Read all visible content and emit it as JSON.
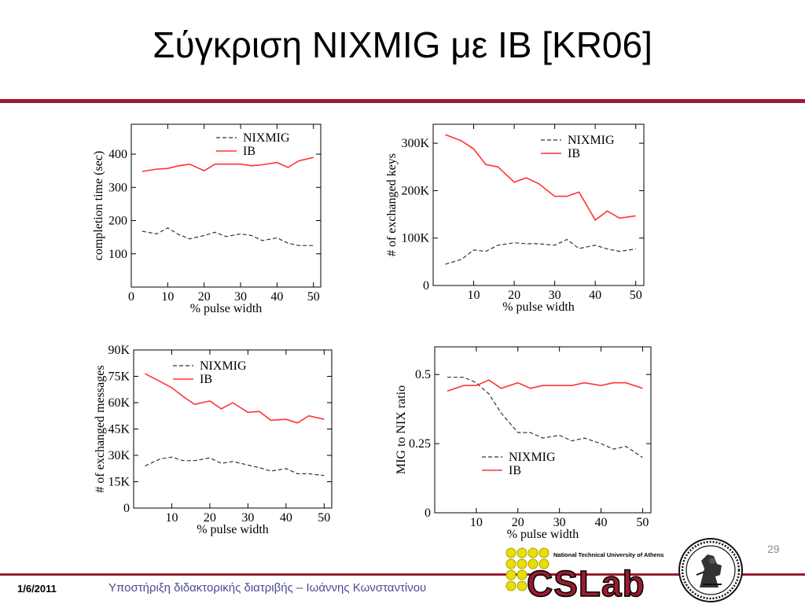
{
  "slide": {
    "title": "Σύγκριση NIXMIG με IB [KR06]",
    "page_number": "29",
    "footer_date": "1/6/2011",
    "footer_text": "Υποστήριξη διδακτορικής διατριβής – Ιωάννης Κωνσταντίνου",
    "logo_text": "CSLab",
    "logo_subtitle": "National Technical University of Athens",
    "accent_color": "#9b1b30",
    "ib_color": "#ff3333",
    "nixmig_color": "#333333"
  },
  "chart_data": [
    {
      "type": "line",
      "xlabel": "% pulse width",
      "ylabel": "completion time (sec)",
      "xlim": [
        0,
        52
      ],
      "ylim": [
        0,
        490
      ],
      "xticks": [
        0,
        10,
        20,
        30,
        40,
        50
      ],
      "xtick_labels": [
        "0",
        "10",
        "20",
        "30",
        "40",
        "50"
      ],
      "yticks": [
        100,
        200,
        300,
        400
      ],
      "ytick_labels": [
        "100",
        "200",
        "300",
        "400"
      ],
      "legend_position": "top-right",
      "series": [
        {
          "name": "NIXMIG",
          "x": [
            3,
            7,
            10,
            13,
            16,
            20,
            23,
            26,
            30,
            33,
            36,
            40,
            43,
            46,
            50
          ],
          "y": [
            168,
            160,
            178,
            158,
            145,
            155,
            165,
            152,
            160,
            155,
            140,
            148,
            132,
            125,
            125
          ]
        },
        {
          "name": "IB",
          "x": [
            3,
            7,
            10,
            13,
            16,
            20,
            23,
            26,
            30,
            33,
            36,
            40,
            43,
            46,
            50
          ],
          "y": [
            348,
            355,
            357,
            365,
            370,
            350,
            370,
            370,
            370,
            365,
            368,
            375,
            360,
            380,
            390
          ]
        }
      ]
    },
    {
      "type": "line",
      "xlabel": "% pulse width",
      "ylabel": "# of exchanged keys",
      "xlim": [
        0,
        52
      ],
      "ylim": [
        0,
        340000
      ],
      "xticks": [
        10,
        20,
        30,
        40,
        50
      ],
      "xtick_labels": [
        "10",
        "20",
        "30",
        "40",
        "50"
      ],
      "yticks": [
        0,
        100000,
        200000,
        300000
      ],
      "ytick_labels": [
        "0",
        "100K",
        "200K",
        "300K"
      ],
      "legend_position": "top-right",
      "series": [
        {
          "name": "NIXMIG",
          "x": [
            3,
            7,
            10,
            13,
            16,
            20,
            23,
            26,
            30,
            33,
            36,
            40,
            43,
            46,
            50
          ],
          "y": [
            45000,
            55000,
            75000,
            72000,
            85000,
            90000,
            88000,
            88000,
            85000,
            97000,
            78000,
            85000,
            77000,
            72000,
            77000
          ]
        },
        {
          "name": "IB",
          "x": [
            3,
            7,
            10,
            13,
            16,
            20,
            23,
            26,
            30,
            33,
            36,
            40,
            43,
            46,
            50
          ],
          "y": [
            318000,
            305000,
            288000,
            255000,
            250000,
            218000,
            227000,
            215000,
            188000,
            188000,
            197000,
            138000,
            157000,
            142000,
            147000
          ]
        }
      ]
    },
    {
      "type": "line",
      "xlabel": "% pulse width",
      "ylabel": "# of exchanged messages",
      "xlim": [
        0,
        52
      ],
      "ylim": [
        0,
        90000
      ],
      "xticks": [
        10,
        20,
        30,
        40,
        50
      ],
      "xtick_labels": [
        "10",
        "20",
        "30",
        "40",
        "50"
      ],
      "yticks": [
        0,
        15000,
        30000,
        45000,
        60000,
        75000,
        90000
      ],
      "ytick_labels": [
        "0",
        "15K",
        "30K",
        "45K",
        "60K",
        "75K",
        "90K"
      ],
      "legend_position": "top-right",
      "series": [
        {
          "name": "NIXMIG",
          "x": [
            3,
            7,
            10,
            13,
            16,
            20,
            23,
            26,
            30,
            33,
            36,
            40,
            43,
            46,
            50
          ],
          "y": [
            24000,
            28000,
            29000,
            27000,
            27000,
            28500,
            25500,
            26500,
            24500,
            23000,
            21000,
            22500,
            19500,
            19500,
            18500
          ]
        },
        {
          "name": "IB",
          "x": [
            3,
            7,
            10,
            13,
            16,
            20,
            23,
            26,
            30,
            33,
            36,
            40,
            43,
            46,
            50
          ],
          "y": [
            76500,
            72000,
            68500,
            63500,
            59000,
            61000,
            56500,
            60000,
            54500,
            55000,
            50000,
            50500,
            48500,
            52500,
            50500
          ]
        }
      ]
    },
    {
      "type": "line",
      "xlabel": "% pulse width",
      "ylabel": "MIG to NIX ratio",
      "xlim": [
        0,
        52
      ],
      "ylim": [
        0,
        0.6
      ],
      "xticks": [
        10,
        20,
        30,
        40,
        50
      ],
      "xtick_labels": [
        "10",
        "20",
        "30",
        "40",
        "50"
      ],
      "yticks": [
        0,
        0.25,
        0.5
      ],
      "ytick_labels": [
        "0",
        "0.25",
        "0.5"
      ],
      "legend_position": "bottom-center",
      "series": [
        {
          "name": "NIXMIG",
          "x": [
            3,
            7,
            10,
            13,
            16,
            20,
            23,
            26,
            30,
            33,
            36,
            40,
            43,
            46,
            50
          ],
          "y": [
            0.49,
            0.49,
            0.47,
            0.43,
            0.36,
            0.29,
            0.29,
            0.27,
            0.28,
            0.26,
            0.27,
            0.25,
            0.23,
            0.24,
            0.2
          ]
        },
        {
          "name": "IB",
          "x": [
            3,
            7,
            10,
            13,
            16,
            20,
            23,
            26,
            30,
            33,
            36,
            40,
            43,
            46,
            50
          ],
          "y": [
            0.44,
            0.46,
            0.46,
            0.48,
            0.45,
            0.47,
            0.45,
            0.46,
            0.46,
            0.46,
            0.47,
            0.46,
            0.47,
            0.47,
            0.45
          ]
        }
      ]
    }
  ]
}
